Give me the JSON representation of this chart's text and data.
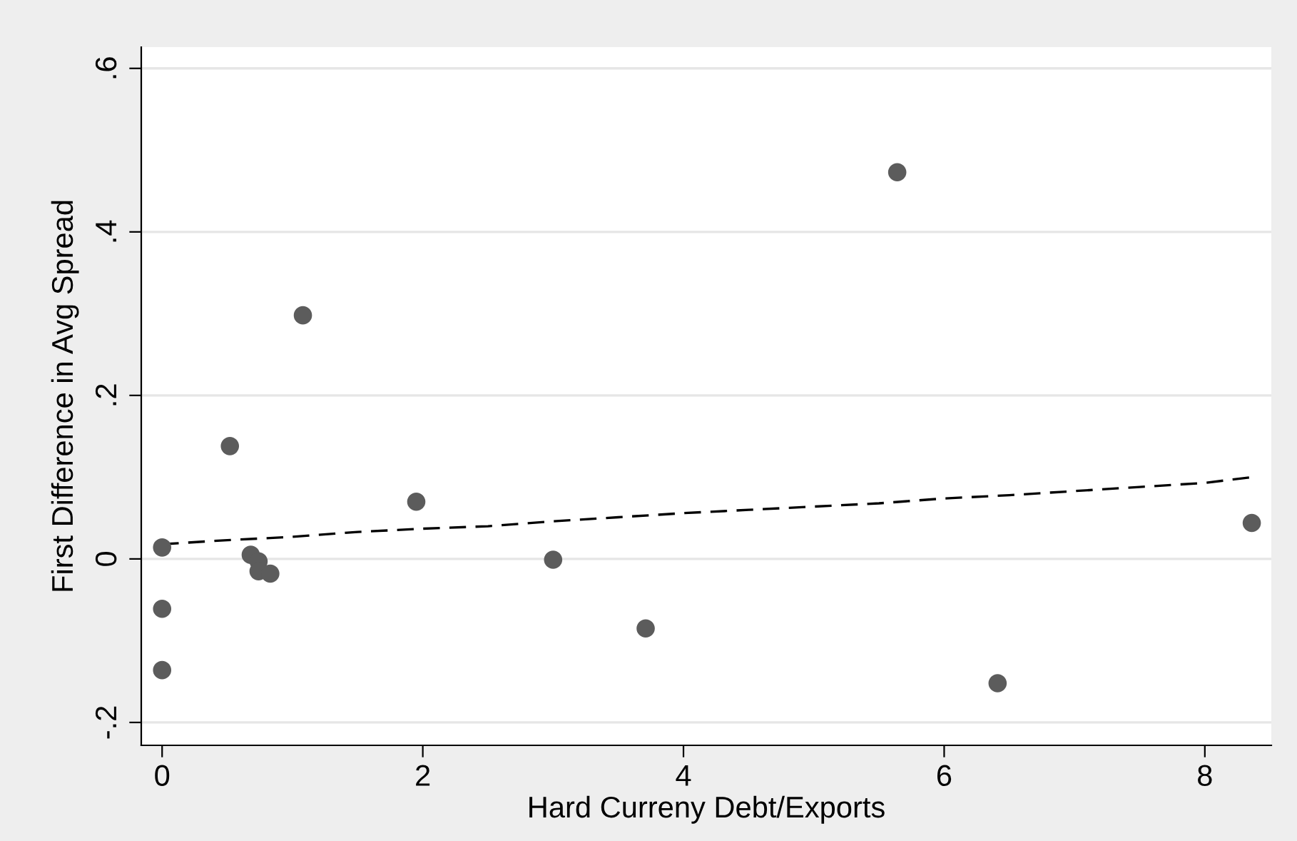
{
  "chart_data": {
    "type": "scatter",
    "xlabel": "Hard Curreny Debt/Exports",
    "ylabel": "First Difference in Avg Spread",
    "xlim": [
      -0.16,
      8.51
    ],
    "ylim": [
      -0.228,
      0.626
    ],
    "xticks": [
      0,
      2,
      4,
      6,
      8
    ],
    "yticks": [
      {
        "value": -0.2,
        "label": "-.2"
      },
      0,
      {
        "value": 0.2,
        "label": ".2"
      },
      {
        "value": 0.4,
        "label": ".4"
      },
      {
        "value": 0.6,
        "label": ".6"
      }
    ],
    "grid": "y",
    "marker": "circle",
    "series": [
      {
        "color": "#5c5c5c",
        "x": [
          0,
          0,
          0,
          0.52,
          0.68,
          0.74,
          0.74,
          0.83,
          1.08,
          1.95,
          3.0,
          3.71,
          5.64,
          6.41,
          8.36
        ],
        "values": [
          0.014,
          -0.061,
          -0.136,
          0.138,
          0.005,
          -0.003,
          -0.015,
          -0.018,
          0.298,
          0.07,
          -0.001,
          -0.085,
          0.473,
          -0.152,
          0.044
        ]
      },
      {
        "type": "line",
        "color": "#000000",
        "line_style": "dashed",
        "marker": "none",
        "x": [
          0,
          0.5,
          1,
          1.5,
          2,
          2.5,
          3,
          3.5,
          4,
          4.5,
          5,
          5.5,
          6,
          6.5,
          7,
          7.5,
          8,
          8.36
        ],
        "values": [
          0.018,
          0.023,
          0.027,
          0.033,
          0.037,
          0.04,
          0.046,
          0.051,
          0.056,
          0.06,
          0.064,
          0.068,
          0.074,
          0.078,
          0.083,
          0.088,
          0.093,
          0.1
        ]
      }
    ]
  }
}
